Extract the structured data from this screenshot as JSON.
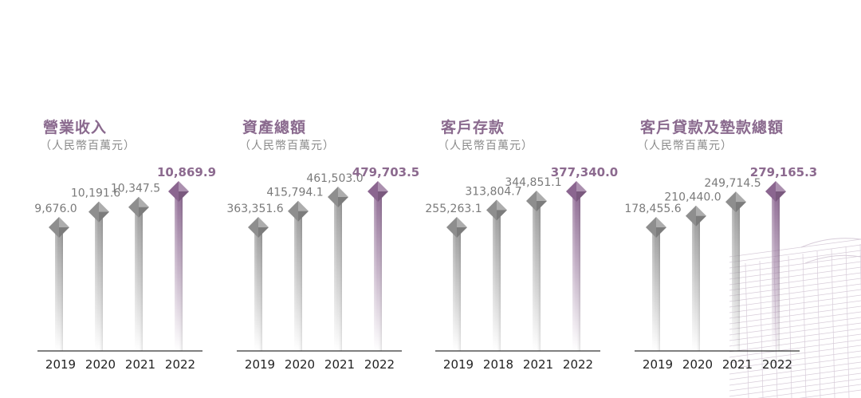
{
  "chart_data": [
    {
      "type": "bar",
      "title": "營業收入",
      "unit": "（人民幣百萬元）",
      "categories": [
        "2019",
        "2020",
        "2021",
        "2022"
      ],
      "values": [
        9676.0,
        10191.6,
        10347.5,
        10869.9
      ],
      "labels": [
        "9,676.0",
        "10,191.6",
        "10,347.5",
        "10,869.9"
      ],
      "highlight_index": 3
    },
    {
      "type": "bar",
      "title": "資產總額",
      "unit": "（人民幣百萬元）",
      "categories": [
        "2019",
        "2020",
        "2021",
        "2022"
      ],
      "values": [
        363351.6,
        415794.1,
        461503.0,
        479703.5
      ],
      "labels": [
        "363,351.6",
        "415,794.1",
        "461,503.0",
        "479,703.5"
      ],
      "highlight_index": 3
    },
    {
      "type": "bar",
      "title": "客戶存款",
      "unit": "（人民幣百萬元）",
      "categories": [
        "2019",
        "2018",
        "2021",
        "2022"
      ],
      "values": [
        255263.1,
        313804.7,
        344851.1,
        377340.0
      ],
      "labels": [
        "255,263.1",
        "313,804.7",
        "344,851.1",
        "377,340.0"
      ],
      "highlight_index": 3
    },
    {
      "type": "bar",
      "title": "客戶貸款及墊款總額",
      "unit": "（人民幣百萬元）",
      "categories": [
        "2019",
        "2020",
        "2021",
        "2022"
      ],
      "values": [
        178455.6,
        210440.0,
        249714.5,
        279165.3
      ],
      "labels": [
        "178,455.6",
        "210,440.0",
        "249,714.5",
        "279,165.3"
      ],
      "highlight_index": 3
    }
  ],
  "colors": {
    "title": "#8a6a8e",
    "highlight_label": "#8c6a8f",
    "bar_gray": "#9a9a9a",
    "bar_purple": "#8e6a93",
    "axis": "#333333"
  }
}
